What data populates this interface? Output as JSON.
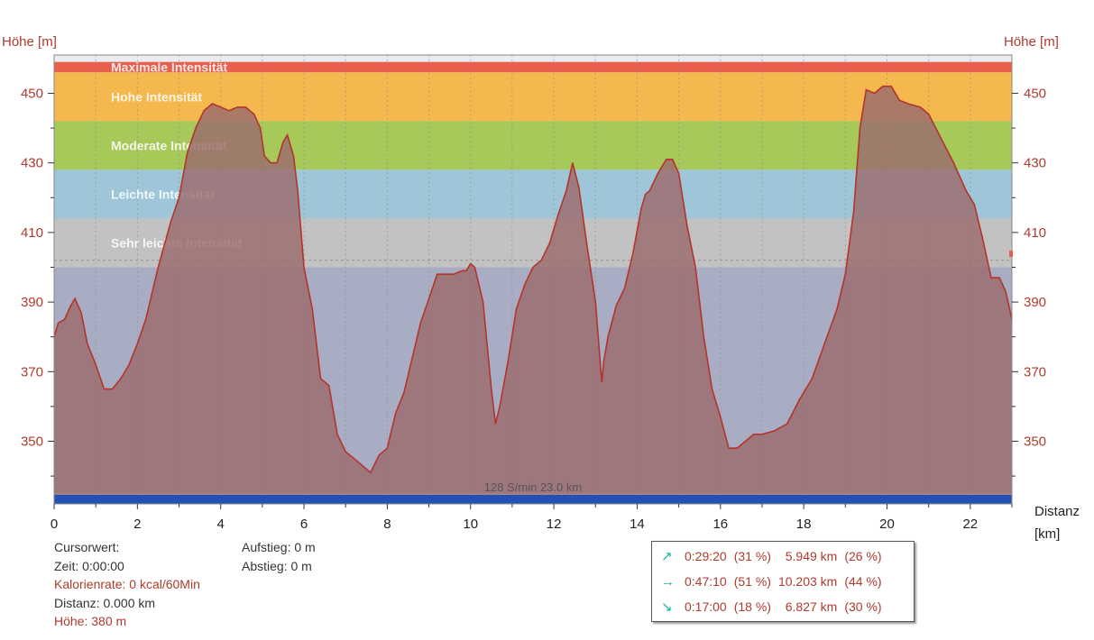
{
  "chart_data": {
    "type": "area",
    "ylabel_left": "Höhe [m]",
    "ylabel_right": "Höhe [m]",
    "xlabel": "Distanz",
    "xunit": "[km]",
    "xlim": [
      0,
      23
    ],
    "ylim": [
      332,
      461
    ],
    "xticks": [
      0,
      2,
      4,
      6,
      8,
      10,
      12,
      14,
      16,
      18,
      20,
      22
    ],
    "yticks": [
      350,
      370,
      390,
      410,
      430,
      450
    ],
    "grid": true,
    "zones": [
      {
        "label": "Maximale Intensität",
        "from": 456,
        "to": 459,
        "color": "#e8604c"
      },
      {
        "label": "Hohe Intensität",
        "from": 442,
        "to": 456,
        "color": "#f4b84f"
      },
      {
        "label": "Moderate Intensität",
        "from": 428,
        "to": 442,
        "color": "#a6c95a"
      },
      {
        "label": "Leichte Intensität",
        "from": 414,
        "to": 428,
        "color": "#9ec6d8"
      },
      {
        "label": "Sehr leichte Intensität",
        "from": 400,
        "to": 414,
        "color": "#c2c2c2"
      },
      {
        "label": "",
        "from": 335,
        "to": 400,
        "color": "#a9adc4"
      }
    ],
    "bottom_bar_color": "#2350b5",
    "bottom_caption": "128 S/min 23.0 km",
    "series": [
      {
        "color": "#9b6b6e",
        "stroke": "#b5332a",
        "x": [
          0,
          0.1,
          0.25,
          0.4,
          0.5,
          0.65,
          0.8,
          1.0,
          1.2,
          1.4,
          1.6,
          1.8,
          2.0,
          2.2,
          2.5,
          2.8,
          3.0,
          3.2,
          3.4,
          3.6,
          3.8,
          4.0,
          4.2,
          4.4,
          4.6,
          4.8,
          4.95,
          5.05,
          5.2,
          5.35,
          5.5,
          5.6,
          5.75,
          5.85,
          6.0,
          6.2,
          6.4,
          6.6,
          6.8,
          7.0,
          7.2,
          7.4,
          7.6,
          7.8,
          8.0,
          8.2,
          8.4,
          8.6,
          8.8,
          9.0,
          9.2,
          9.4,
          9.6,
          9.8,
          9.9,
          10.0,
          10.1,
          10.3,
          10.5,
          10.6,
          10.7,
          10.9,
          11.1,
          11.3,
          11.5,
          11.7,
          11.9,
          12.1,
          12.3,
          12.45,
          12.6,
          12.8,
          13.0,
          13.15,
          13.2,
          13.3,
          13.5,
          13.7,
          13.9,
          14.1,
          14.2,
          14.3,
          14.5,
          14.7,
          14.85,
          15.0,
          15.2,
          15.4,
          15.6,
          15.8,
          16.0,
          16.2,
          16.4,
          16.6,
          16.8,
          17.0,
          17.3,
          17.6,
          17.9,
          18.2,
          18.5,
          18.8,
          19.0,
          19.2,
          19.35,
          19.5,
          19.7,
          19.9,
          20.1,
          20.3,
          20.5,
          20.8,
          21.0,
          21.3,
          21.6,
          21.9,
          22.1,
          22.3,
          22.5,
          22.7,
          22.85,
          23.0
        ],
        "values": [
          380,
          384,
          385,
          389,
          391,
          387,
          378,
          372,
          365,
          365,
          368,
          372,
          378,
          385,
          400,
          413,
          420,
          433,
          440,
          445,
          447,
          446,
          445,
          446,
          446,
          444,
          440,
          432,
          430,
          430,
          436,
          438,
          432,
          422,
          400,
          388,
          368,
          366,
          352,
          347,
          345,
          343,
          341,
          346,
          348,
          358,
          364,
          374,
          384,
          391,
          398,
          398,
          398,
          399,
          399,
          401,
          400,
          390,
          365,
          355,
          360,
          373,
          388,
          395,
          400,
          402,
          407,
          415,
          422,
          430,
          423,
          406,
          390,
          367,
          373,
          380,
          389,
          394,
          404,
          417,
          421,
          422,
          427,
          431,
          431,
          427,
          412,
          400,
          380,
          365,
          357,
          348,
          348,
          350,
          352,
          352,
          353,
          355,
          362,
          368,
          378,
          388,
          398,
          416,
          440,
          451,
          450,
          452,
          452,
          448,
          447,
          446,
          444,
          437,
          430,
          422,
          418,
          408,
          397,
          397,
          393,
          385
        ]
      }
    ]
  },
  "info": {
    "cursor_label": "Cursorwert:",
    "time": "Zeit: 0:00:00",
    "calorie_rate": "Kalorienrate: 0 kcal/60Min",
    "distance": "Distanz: 0.000 km",
    "height": "Höhe: 380 m",
    "ascent": "Aufstieg: 0 m",
    "descent": "Abstieg: 0 m"
  },
  "summary": {
    "arrow_color": "#1bb3a0",
    "rows": [
      {
        "icon": "uphill-arrow-icon",
        "glyph": "↗",
        "time": "0:29:20",
        "time_pct": "(31 %)",
        "dist": "5.949 km",
        "dist_pct": "(26 %)"
      },
      {
        "icon": "flat-arrow-icon",
        "glyph": "→",
        "time": "0:47:10",
        "time_pct": "(51 %)",
        "dist": "10.203 km",
        "dist_pct": "(44 %)"
      },
      {
        "icon": "downhill-arrow-icon",
        "glyph": "↘",
        "time": "0:17:00",
        "time_pct": "(18 %)",
        "dist": "6.827 km",
        "dist_pct": "(30 %)"
      }
    ]
  }
}
